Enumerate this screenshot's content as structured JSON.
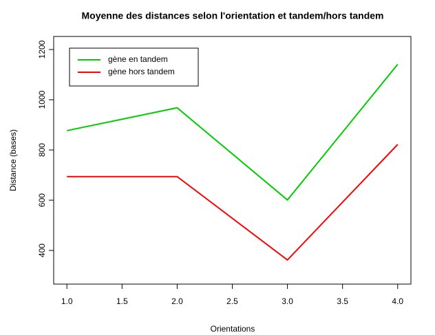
{
  "chart_data": {
    "type": "line",
    "title": "Moyenne des distances selon l'orientation et tandem/hors tandem",
    "x_label": "Orientations",
    "y_label": "Distance (bases)",
    "x": [
      1,
      2,
      3,
      4
    ],
    "series": [
      {
        "name": "gène en tandem",
        "color": "#00cd00",
        "values": [
          877,
          968,
          601,
          1141
        ]
      },
      {
        "name": "gène hors tandem",
        "color": "#ff0000",
        "values": [
          694,
          694,
          362,
          822
        ]
      }
    ],
    "xlim": [
      0.88,
      4.12
    ],
    "xticks": [
      {
        "value": 1,
        "label": "1.0"
      },
      {
        "value": 1.5,
        "label": "1.5"
      },
      {
        "value": 2,
        "label": "2.0"
      },
      {
        "value": 2.5,
        "label": "2.5"
      },
      {
        "value": 3,
        "label": "3.0"
      },
      {
        "value": 3.5,
        "label": "3.5"
      },
      {
        "value": 4,
        "label": "4.0"
      }
    ],
    "ylim": [
      266,
      1252
    ],
    "yticks": [
      400,
      600,
      800,
      1000,
      1200
    ],
    "legend": "top-left"
  }
}
